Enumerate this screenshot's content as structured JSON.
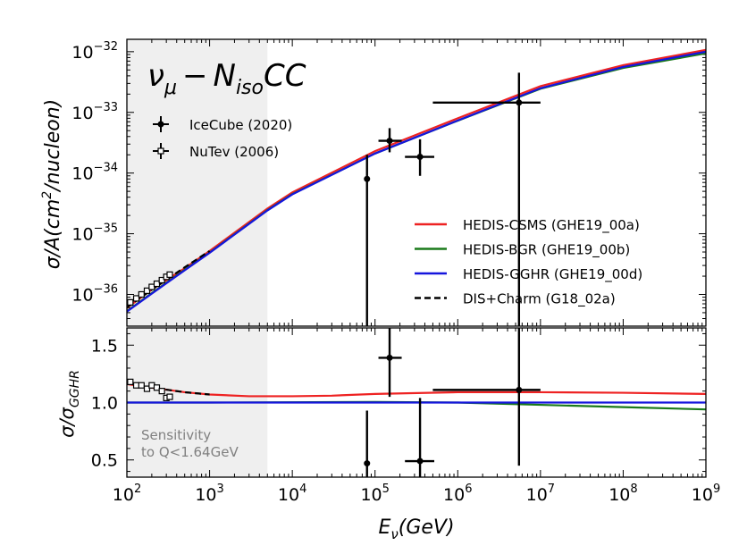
{
  "chart_data": [
    {
      "type": "line",
      "panel": "main",
      "annotation": {
        "nu": "ν",
        "nu_sub": "μ",
        "dash": "−",
        "n": "N",
        "n_sub": "iso",
        "cc": "CC"
      },
      "ylabel": {
        "a": "σ/A(cm",
        "sup": "2",
        "b": "/nucleon)"
      },
      "xscale": "log",
      "yscale": "log",
      "xlim": [
        100,
        1000000000
      ],
      "ylim": [
        3e-37,
        1.6e-32
      ],
      "yticks": [
        {
          "value": 1e-36,
          "base": "10",
          "exp": "−36"
        },
        {
          "value": 1e-35,
          "base": "10",
          "exp": "−35"
        },
        {
          "value": 1e-34,
          "base": "10",
          "exp": "−34"
        },
        {
          "value": 1e-33,
          "base": "10",
          "exp": "−33"
        },
        {
          "value": 1e-32,
          "base": "10",
          "exp": "−32"
        }
      ],
      "shaded_region": {
        "x": [
          100,
          5000
        ]
      },
      "series": [
        {
          "name": "HEDIS-CSMS (GHE19_00a)",
          "color": "#ee2222",
          "style": "solid",
          "points": [
            [
              100,
              6e-37
            ],
            [
              200,
              1.2e-36
            ],
            [
              500,
              2.7e-36
            ],
            [
              1000,
              5.2e-36
            ],
            [
              5000,
              2.6e-35
            ],
            [
              10000,
              4.8e-35
            ],
            [
              100000,
              2.3e-34
            ],
            [
              1000000,
              8e-34
            ],
            [
              10000000,
              2.7e-33
            ],
            [
              100000000,
              6e-33
            ],
            [
              1000000000,
              1.07e-32
            ]
          ]
        },
        {
          "name": "HEDIS-BGR (GHE19_00b)",
          "color": "#1a7a1a",
          "style": "solid",
          "points": [
            [
              100,
              5.3e-37
            ],
            [
              200,
              1.05e-36
            ],
            [
              500,
              2.55e-36
            ],
            [
              1000,
              4.9e-36
            ],
            [
              5000,
              2.45e-35
            ],
            [
              10000,
              4.5e-35
            ],
            [
              100000,
              2.1e-34
            ],
            [
              1000000,
              7.3e-34
            ],
            [
              10000000,
              2.45e-33
            ],
            [
              100000000,
              5.4e-33
            ],
            [
              1000000000,
              9.4e-33
            ]
          ]
        },
        {
          "name": "HEDIS-GGHR (GHE19_00d)",
          "color": "#1515dd",
          "style": "solid",
          "points": [
            [
              100,
              5.2e-37
            ],
            [
              200,
              1.03e-36
            ],
            [
              500,
              2.5e-36
            ],
            [
              1000,
              4.85e-36
            ],
            [
              5000,
              2.42e-35
            ],
            [
              10000,
              4.45e-35
            ],
            [
              100000,
              2.1e-34
            ],
            [
              1000000,
              7.35e-34
            ],
            [
              10000000,
              2.5e-33
            ],
            [
              100000000,
              5.6e-33
            ],
            [
              1000000000,
              1e-32
            ]
          ]
        },
        {
          "name": "DIS+Charm (G18_02a)",
          "color": "#000000",
          "style": "dashed",
          "points": [
            [
              100,
              6.1e-37
            ],
            [
              200,
              1.2e-36
            ],
            [
              500,
              2.8e-36
            ],
            [
              1000,
              5.2e-36
            ]
          ]
        }
      ],
      "data_sets": [
        {
          "name": "IceCube (2020)",
          "marker": "filled-circle",
          "points": [
            {
              "x": 80000,
              "y": 8e-35,
              "xerr": [
                78000,
                84000
              ],
              "yerr": [
                3e-37,
                2e-34
              ]
            },
            {
              "x": 150000,
              "y": 3.4e-34,
              "xerr": [
                110000,
                210000
              ],
              "yerr": [
                2.2e-34,
                5.5e-34
              ]
            },
            {
              "x": 350000,
              "y": 1.85e-34,
              "xerr": [
                230000,
                520000
              ],
              "yerr": [
                9e-35,
                3.6e-34
              ]
            },
            {
              "x": 5500000,
              "y": 1.45e-33,
              "xerr": [
                500000,
                10000000
              ],
              "yerr": [
                3e-37,
                4.5e-33
              ]
            }
          ]
        },
        {
          "name": "NuTev (2006)",
          "marker": "open-square",
          "points": [
            {
              "x": 110,
              "y": 7.4e-37
            },
            {
              "x": 130,
              "y": 8.6e-37
            },
            {
              "x": 150,
              "y": 1e-36
            },
            {
              "x": 175,
              "y": 1.15e-36
            },
            {
              "x": 200,
              "y": 1.33e-36
            },
            {
              "x": 230,
              "y": 1.5e-36
            },
            {
              "x": 265,
              "y": 1.72e-36
            },
            {
              "x": 300,
              "y": 1.95e-36
            },
            {
              "x": 330,
              "y": 2.12e-36
            }
          ]
        }
      ],
      "legend": {
        "placement": "lower-right"
      },
      "data_legend": {
        "placement": "upper-left"
      }
    },
    {
      "type": "line",
      "panel": "ratio",
      "ylabel": {
        "a": "σ/σ",
        "sub": "GGHR"
      },
      "xlabel": {
        "a": "E",
        "sub": "ν",
        "b": "(GeV)"
      },
      "xscale": "log",
      "yscale": "linear",
      "xlim": [
        100,
        1000000000
      ],
      "ylim": [
        0.35,
        1.65
      ],
      "xticks": [
        {
          "value": 100,
          "base": "10",
          "exp": "2"
        },
        {
          "value": 1000,
          "base": "10",
          "exp": "3"
        },
        {
          "value": 10000,
          "base": "10",
          "exp": "4"
        },
        {
          "value": 100000,
          "base": "10",
          "exp": "5"
        },
        {
          "value": 1000000,
          "base": "10",
          "exp": "6"
        },
        {
          "value": 10000000,
          "base": "10",
          "exp": "7"
        },
        {
          "value": 100000000,
          "base": "10",
          "exp": "8"
        },
        {
          "value": 1000000000,
          "base": "10",
          "exp": "9"
        }
      ],
      "yticks": [
        {
          "value": 0.5,
          "label": "0.5"
        },
        {
          "value": 1.0,
          "label": "1.0"
        },
        {
          "value": 1.5,
          "label": "1.5"
        }
      ],
      "shaded_region": {
        "x": [
          100,
          5000
        ]
      },
      "sensitivity_label": [
        "Sensitivity",
        "to Q<1.64GeV"
      ],
      "series": [
        {
          "name": "HEDIS-CSMS (GHE19_00a)",
          "color": "#ee2222",
          "style": "solid",
          "points": [
            [
              100,
              1.16
            ],
            [
              200,
              1.13
            ],
            [
              500,
              1.09
            ],
            [
              1000,
              1.07
            ],
            [
              3000,
              1.055
            ],
            [
              10000,
              1.055
            ],
            [
              30000,
              1.06
            ],
            [
              100000,
              1.075
            ],
            [
              1000000,
              1.09
            ],
            [
              10000000,
              1.09
            ],
            [
              100000000,
              1.085
            ],
            [
              1000000000,
              1.075
            ]
          ]
        },
        {
          "name": "HEDIS-BGR (GHE19_00b)",
          "color": "#1a7a1a",
          "style": "solid",
          "points": [
            [
              100,
              1.0
            ],
            [
              1000,
              1.0
            ],
            [
              100000,
              1.005
            ],
            [
              1000000,
              1.0
            ],
            [
              10000000,
              0.98
            ],
            [
              100000000,
              0.96
            ],
            [
              1000000000,
              0.94
            ]
          ]
        },
        {
          "name": "HEDIS-GGHR (GHE19_00d)",
          "color": "#1515dd",
          "style": "solid",
          "points": [
            [
              100,
              1.0
            ],
            [
              1000000000,
              1.0
            ]
          ]
        },
        {
          "name": "DIS+Charm (G18_02a)",
          "color": "#000000",
          "style": "dashed",
          "points": [
            [
              100,
              1.17
            ],
            [
              200,
              1.13
            ],
            [
              500,
              1.09
            ],
            [
              1000,
              1.07
            ]
          ]
        }
      ],
      "data_sets": [
        {
          "name": "IceCube (2020)",
          "marker": "filled-circle",
          "points": [
            {
              "x": 80000,
              "y": 0.47,
              "xerr": [
                78000,
                84000
              ],
              "yerr": [
                0.35,
                0.93
              ]
            },
            {
              "x": 150000,
              "y": 1.39,
              "xerr": [
                110000,
                210000
              ],
              "yerr": [
                1.05,
                1.65
              ]
            },
            {
              "x": 350000,
              "y": 0.49,
              "xerr": [
                230000,
                520000
              ],
              "yerr": [
                0.35,
                1.04
              ]
            },
            {
              "x": 5500000,
              "y": 1.11,
              "xerr": [
                500000,
                10000000
              ],
              "yerr": [
                0.45,
                1.65
              ]
            }
          ]
        },
        {
          "name": "NuTev (2006)",
          "marker": "open-square",
          "points": [
            {
              "x": 110,
              "y": 1.18
            },
            {
              "x": 130,
              "y": 1.15
            },
            {
              "x": 150,
              "y": 1.15
            },
            {
              "x": 175,
              "y": 1.12
            },
            {
              "x": 200,
              "y": 1.15
            },
            {
              "x": 230,
              "y": 1.13
            },
            {
              "x": 265,
              "y": 1.1
            },
            {
              "x": 300,
              "y": 1.04
            },
            {
              "x": 330,
              "y": 1.05
            }
          ]
        }
      ]
    }
  ]
}
